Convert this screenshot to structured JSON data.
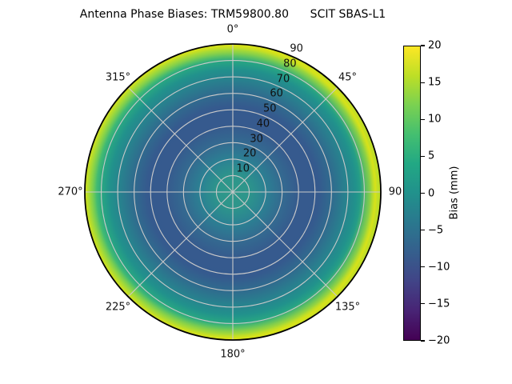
{
  "title": "Antenna Phase Biases: TRM59800.80      SCIT SBAS-L1",
  "polar": {
    "angular_ticks": [
      {
        "angle": 0,
        "label": "0°"
      },
      {
        "angle": 45,
        "label": "45°"
      },
      {
        "angle": 90,
        "label": "90"
      },
      {
        "angle": 135,
        "label": "135°"
      },
      {
        "angle": 180,
        "label": "180°"
      },
      {
        "angle": 225,
        "label": "225°"
      },
      {
        "angle": 270,
        "label": "270°"
      },
      {
        "angle": 315,
        "label": "315°"
      }
    ],
    "radial_ticks": [
      "10",
      "20",
      "30",
      "40",
      "50",
      "60",
      "70",
      "80",
      "90"
    ],
    "grid_color": "#c9c9c9",
    "outline_color": "#000000",
    "disk_gradient": [
      [
        "0%",
        "#30998a"
      ],
      [
        "11%",
        "#2d958b"
      ],
      [
        "22%",
        "#2b8193"
      ],
      [
        "33%",
        "#336b90"
      ],
      [
        "45%",
        "#365a8e"
      ],
      [
        "58%",
        "#355a8e"
      ],
      [
        "68%",
        "#2f6d8e"
      ],
      [
        "76%",
        "#28818e"
      ],
      [
        "83%",
        "#21918c"
      ],
      [
        "88%",
        "#27a483"
      ],
      [
        "92%",
        "#42bb72"
      ],
      [
        "96%",
        "#7bd250"
      ],
      [
        "100%",
        "#c8e020"
      ]
    ],
    "rim_highlight": "#d8e219"
  },
  "colorbar": {
    "label": "Bias (mm)",
    "tick_labels": [
      "20",
      "15",
      "10",
      "5",
      "0",
      "−5",
      "−10",
      "−15",
      "−20"
    ],
    "vmin": -20,
    "vmax": 20,
    "viridis_stops": [
      [
        "0%",
        "#440154"
      ],
      [
        "10%",
        "#482475"
      ],
      [
        "20%",
        "#414487"
      ],
      [
        "30%",
        "#355f8d"
      ],
      [
        "40%",
        "#2a788e"
      ],
      [
        "50%",
        "#21918c"
      ],
      [
        "60%",
        "#22a884"
      ],
      [
        "70%",
        "#44bf70"
      ],
      [
        "80%",
        "#7ad151"
      ],
      [
        "90%",
        "#bddf26"
      ],
      [
        "100%",
        "#fde725"
      ]
    ]
  },
  "chart_data": {
    "type": "heatmap",
    "projection": "polar",
    "title": "Antenna Phase Biases: TRM59800.80 SCIT SBAS-L1",
    "antenna": "TRM59800.80",
    "signal": "SCIT SBAS-L1",
    "colorbar_label": "Bias (mm)",
    "colormap": "viridis",
    "color_range": [
      -20,
      20
    ],
    "angular_tick_labels": [
      "0°",
      "45°",
      "90",
      "135°",
      "180°",
      "225°",
      "270°",
      "315°"
    ],
    "radial_tick_labels": [
      10,
      20,
      30,
      40,
      50,
      60,
      70,
      80,
      90
    ],
    "radial_range": [
      0,
      90
    ],
    "grid": true,
    "legend": false,
    "radial_profile": {
      "note": "Bias pattern is approximately azimuthally symmetric; values (mm) estimated from colormap along radius; rim slightly more yellow (higher bias) on the 270° side",
      "radial_coordinate": [
        0,
        10,
        20,
        30,
        40,
        50,
        60,
        70,
        80,
        85,
        90
      ],
      "bias_mm": [
        1,
        0,
        -3,
        -6.5,
        -8,
        -7.5,
        -5,
        -2,
        1,
        6,
        16
      ]
    }
  }
}
